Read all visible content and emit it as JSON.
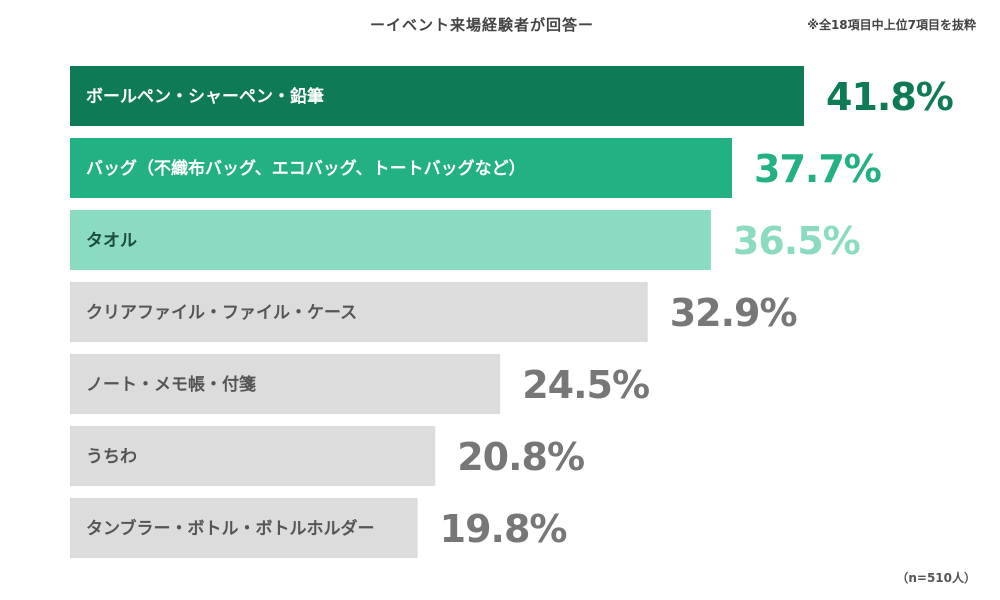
{
  "chart_data": {
    "type": "bar",
    "orientation": "horizontal",
    "subtitle": "ーイベント来場経験者が回答ー",
    "note": "※全18項目中上位7項目を抜粋",
    "footnote": "（n=510人）",
    "xlim": [
      0,
      50
    ],
    "grid": false,
    "categories": [
      "ボールペン・シャーペン・鉛筆",
      "バッグ（不織布バッグ、エコバッグ、トートバッグなど）",
      "タオル",
      "クリアファイル・ファイル・ケース",
      "ノート・メモ帳・付箋",
      "うちわ",
      "タンブラー・ボトル・ボトルホルダー"
    ],
    "values": [
      41.8,
      37.7,
      36.5,
      32.9,
      24.5,
      20.8,
      19.8
    ],
    "value_labels": [
      "41.8%",
      "37.7%",
      "36.5%",
      "32.9%",
      "24.5%",
      "20.8%",
      "19.8%"
    ],
    "bar_colors": [
      "#0f7a56",
      "#22b084",
      "#8adbc2",
      "#dcdcdc",
      "#dcdcdc",
      "#dcdcdc",
      "#dcdcdc"
    ],
    "label_colors": [
      "#ffffff",
      "#ffffff",
      "#1a4d3c",
      "#555555",
      "#555555",
      "#555555",
      "#555555"
    ],
    "value_colors": [
      "#0f7a56",
      "#22b084",
      "#8adbc2",
      "#777777",
      "#777777",
      "#777777",
      "#777777"
    ]
  }
}
